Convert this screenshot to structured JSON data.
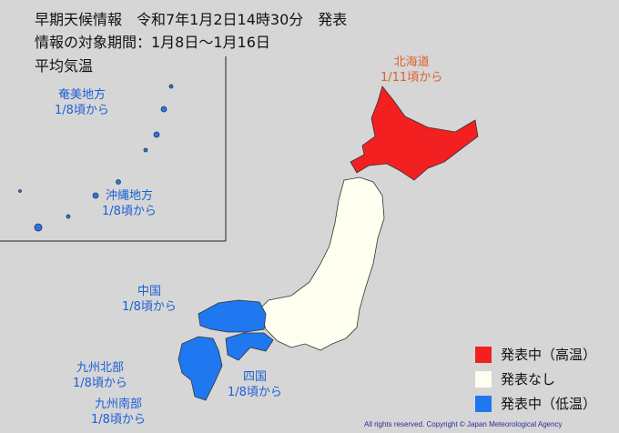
{
  "header": {
    "line1": "早期天候情報　令和7年1月2日14時30分　発表",
    "line2": "情報の対象期間：1月8日～1月16日",
    "element": "平均気温"
  },
  "regions": [
    {
      "name": "北海道",
      "date": "1/11頃から",
      "status": "high"
    },
    {
      "name": "奄美地方",
      "date": "1/8頃から",
      "status": "low"
    },
    {
      "name": "沖縄地方",
      "date": "1/8頃から",
      "status": "low"
    },
    {
      "name": "中国",
      "date": "1/8頃から",
      "status": "low"
    },
    {
      "name": "九州北部",
      "date": "1/8頃から",
      "status": "low"
    },
    {
      "name": "九州南部",
      "date": "1/8頃から",
      "status": "low"
    },
    {
      "name": "四国",
      "date": "1/8頃から",
      "status": "low"
    }
  ],
  "legend": [
    {
      "label": "発表中（高温）",
      "color": "#f22020"
    },
    {
      "label": "発表なし",
      "color": "#fffff0"
    },
    {
      "label": "発表中（低温）",
      "color": "#1f78f0"
    }
  ],
  "colors": {
    "high": "#f22020",
    "none": "#fffff0",
    "low": "#1f78f0",
    "background": "#d6d6d6"
  },
  "copyright": "All rights reserved. Copyright © Japan Meteorological Agency"
}
